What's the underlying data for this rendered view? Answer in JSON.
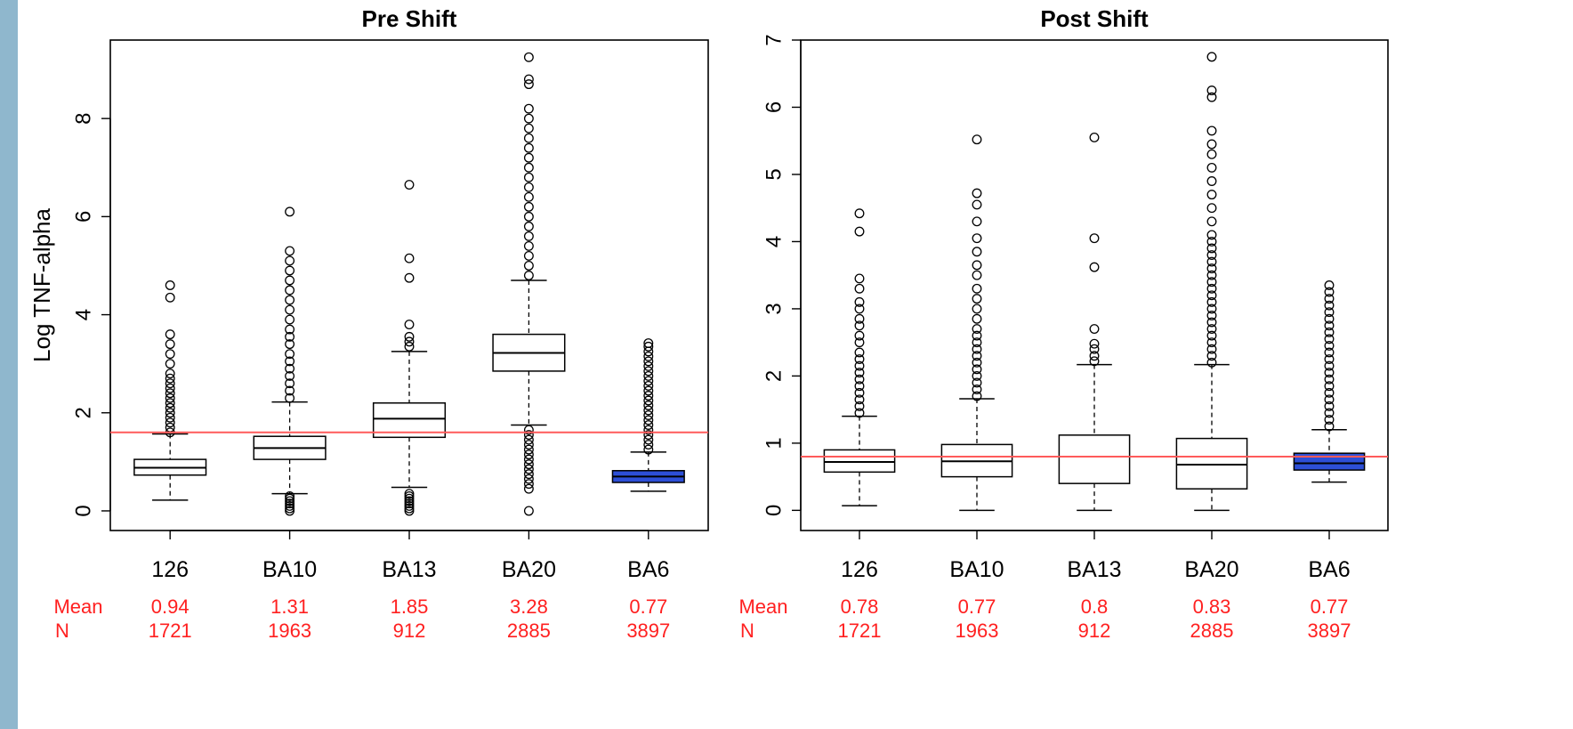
{
  "colors": {
    "strip": "#8fb7cd",
    "reference_line": "#ff5a5a",
    "stats_text": "#ff2020",
    "highlight_box": "#2d4fd6"
  },
  "stats_labels": {
    "mean": "Mean",
    "n": "N"
  },
  "chart_data": [
    {
      "type": "box",
      "title": "Pre Shift",
      "ylabel": "Log TNF-alpha",
      "ylim": [
        -0.4,
        9.6
      ],
      "yticks": [
        0,
        2,
        4,
        6,
        8
      ],
      "reference_line": 1.6,
      "highlight_category": "BA6",
      "categories": [
        "126",
        "BA10",
        "BA13",
        "BA20",
        "BA6"
      ],
      "boxes": [
        {
          "whisker_low": 0.22,
          "q1": 0.73,
          "median": 0.88,
          "q3": 1.05,
          "whisker_high": 1.57
        },
        {
          "whisker_low": 0.35,
          "q1": 1.05,
          "median": 1.28,
          "q3": 1.52,
          "whisker_high": 2.22
        },
        {
          "whisker_low": 0.48,
          "q1": 1.5,
          "median": 1.88,
          "q3": 2.2,
          "whisker_high": 3.25
        },
        {
          "whisker_low": 1.75,
          "q1": 2.85,
          "median": 3.22,
          "q3": 3.6,
          "whisker_high": 4.7
        },
        {
          "whisker_low": 0.4,
          "q1": 0.58,
          "median": 0.7,
          "q3": 0.82,
          "whisker_high": 1.2
        }
      ],
      "outliers": [
        [
          1.6,
          1.7,
          1.8,
          1.9,
          2.0,
          2.1,
          2.2,
          2.3,
          2.4,
          2.5,
          2.6,
          2.7,
          2.8,
          3.0,
          3.2,
          3.4,
          3.6,
          4.35,
          4.6
        ],
        [
          0.0,
          0.05,
          0.1,
          0.15,
          0.2,
          0.25,
          0.3,
          2.3,
          2.45,
          2.6,
          2.75,
          2.9,
          3.05,
          3.2,
          3.4,
          3.55,
          3.7,
          3.9,
          4.1,
          4.3,
          4.5,
          4.7,
          4.9,
          5.1,
          5.3,
          6.1
        ],
        [
          0.0,
          0.05,
          0.1,
          0.15,
          0.2,
          0.25,
          0.3,
          0.35,
          3.35,
          3.45,
          3.55,
          3.8,
          4.75,
          5.15,
          6.65
        ],
        [
          0.0,
          0.45,
          0.55,
          0.65,
          0.75,
          0.85,
          0.95,
          1.05,
          1.15,
          1.25,
          1.35,
          1.45,
          1.55,
          1.65,
          4.8,
          5.0,
          5.2,
          5.4,
          5.6,
          5.8,
          6.0,
          6.2,
          6.4,
          6.6,
          6.8,
          7.0,
          7.2,
          7.4,
          7.6,
          7.8,
          8.0,
          8.2,
          8.7,
          8.8,
          9.25
        ],
        [
          1.25,
          1.35,
          1.45,
          1.55,
          1.65,
          1.75,
          1.85,
          1.95,
          2.05,
          2.15,
          2.25,
          2.35,
          2.45,
          2.55,
          2.65,
          2.75,
          2.85,
          2.95,
          3.05,
          3.15,
          3.25,
          3.35,
          3.42
        ]
      ],
      "mean": [
        "0.94",
        "1.31",
        "1.85",
        "3.28",
        "0.77"
      ],
      "n": [
        "1721",
        "1963",
        "912",
        "2885",
        "3897"
      ]
    },
    {
      "type": "box",
      "title": "Post Shift",
      "ylabel": "",
      "ylim": [
        -0.3,
        7.0
      ],
      "yticks": [
        0,
        1,
        2,
        3,
        4,
        5,
        6,
        7
      ],
      "reference_line": 0.8,
      "highlight_category": "BA6",
      "categories": [
        "126",
        "BA10",
        "BA13",
        "BA20",
        "BA6"
      ],
      "boxes": [
        {
          "whisker_low": 0.07,
          "q1": 0.57,
          "median": 0.72,
          "q3": 0.9,
          "whisker_high": 1.4
        },
        {
          "whisker_low": 0.0,
          "q1": 0.5,
          "median": 0.73,
          "q3": 0.98,
          "whisker_high": 1.66
        },
        {
          "whisker_low": 0.0,
          "q1": 0.4,
          "median": 0.8,
          "q3": 1.12,
          "whisker_high": 2.17
        },
        {
          "whisker_low": 0.0,
          "q1": 0.32,
          "median": 0.68,
          "q3": 1.07,
          "whisker_high": 2.17
        },
        {
          "whisker_low": 0.42,
          "q1": 0.6,
          "median": 0.7,
          "q3": 0.85,
          "whisker_high": 1.2
        }
      ],
      "outliers": [
        [
          1.45,
          1.55,
          1.65,
          1.75,
          1.85,
          1.95,
          2.05,
          2.15,
          2.25,
          2.35,
          2.5,
          2.6,
          2.75,
          2.85,
          3.0,
          3.1,
          3.3,
          3.45,
          4.15,
          4.42
        ],
        [
          1.7,
          1.8,
          1.9,
          2.0,
          2.1,
          2.2,
          2.3,
          2.4,
          2.5,
          2.6,
          2.7,
          2.85,
          3.0,
          3.15,
          3.3,
          3.5,
          3.65,
          3.85,
          4.05,
          4.3,
          4.55,
          4.72,
          5.52
        ],
        [
          2.22,
          2.3,
          2.4,
          2.48,
          2.7,
          3.62,
          4.05,
          5.55
        ],
        [
          2.2,
          2.3,
          2.4,
          2.5,
          2.6,
          2.7,
          2.8,
          2.9,
          3.0,
          3.1,
          3.2,
          3.3,
          3.4,
          3.5,
          3.6,
          3.7,
          3.8,
          3.9,
          4.0,
          4.1,
          4.3,
          4.5,
          4.7,
          4.9,
          5.1,
          5.3,
          5.45,
          5.65,
          6.15,
          6.25,
          6.75
        ],
        [
          1.25,
          1.35,
          1.45,
          1.55,
          1.65,
          1.75,
          1.85,
          1.95,
          2.05,
          2.15,
          2.25,
          2.35,
          2.45,
          2.55,
          2.65,
          2.75,
          2.85,
          2.95,
          3.05,
          3.15,
          3.25,
          3.35
        ]
      ],
      "mean": [
        "0.78",
        "0.77",
        "0.8",
        "0.83",
        "0.77"
      ],
      "n": [
        "1721",
        "1963",
        "912",
        "2885",
        "3897"
      ]
    }
  ]
}
